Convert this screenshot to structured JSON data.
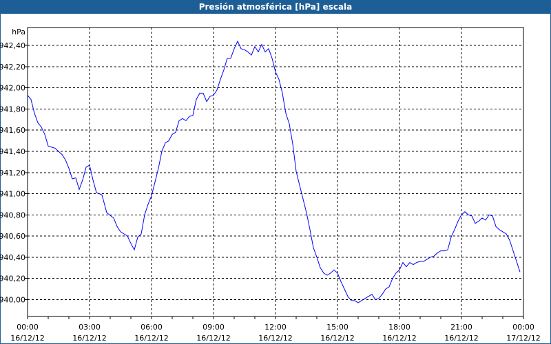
{
  "chart_data": {
    "type": "line",
    "title": "Presión atmosférica [hPa] escala",
    "ylabel": "hPa",
    "ylim": [
      939.84,
      942.57
    ],
    "yticks": [
      "942,40",
      "942,20",
      "942,00",
      "941,80",
      "941,60",
      "941,40",
      "941,20",
      "941,00",
      "940,80",
      "940,60",
      "940,40",
      "940,20",
      "940,00"
    ],
    "ytick_values": [
      942.4,
      942.2,
      942.0,
      941.8,
      941.6,
      941.4,
      941.2,
      941.0,
      940.8,
      940.6,
      940.4,
      940.2,
      940.0
    ],
    "xlim": [
      "16/12/12 00:00",
      "17/12/12 00:00"
    ],
    "xticks": [
      {
        "time": "00:00",
        "date": "16/12/12"
      },
      {
        "time": "03:00",
        "date": "16/12/12"
      },
      {
        "time": "06:00",
        "date": "16/12/12"
      },
      {
        "time": "09:00",
        "date": "16/12/12"
      },
      {
        "time": "12:00",
        "date": "16/12/12"
      },
      {
        "time": "15:00",
        "date": "16/12/12"
      },
      {
        "time": "18:00",
        "date": "16/12/12"
      },
      {
        "time": "21:00",
        "date": "16/12/12"
      },
      {
        "time": "00:00",
        "date": "17/12/12"
      }
    ],
    "grid": true,
    "line_color": "#0000ff",
    "series": [
      {
        "points": [
          [
            "00:00",
            941.93
          ],
          [
            "00:10",
            941.89
          ],
          [
            "00:20",
            941.76
          ],
          [
            "00:30",
            941.67
          ],
          [
            "00:40",
            941.63
          ],
          [
            "00:50",
            941.56
          ],
          [
            "01:00",
            941.45
          ],
          [
            "01:20",
            941.43
          ],
          [
            "01:40",
            941.37
          ],
          [
            "01:50",
            941.32
          ],
          [
            "02:00",
            941.24
          ],
          [
            "02:10",
            941.14
          ],
          [
            "02:20",
            941.15
          ],
          [
            "02:30",
            941.04
          ],
          [
            "02:40",
            941.13
          ],
          [
            "02:50",
            941.25
          ],
          [
            "03:00",
            941.27
          ],
          [
            "03:10",
            941.13
          ],
          [
            "03:20",
            941.01
          ],
          [
            "03:36",
            940.99
          ],
          [
            "03:50",
            940.82
          ],
          [
            "04:10",
            940.77
          ],
          [
            "04:20",
            940.69
          ],
          [
            "04:30",
            940.64
          ],
          [
            "04:50",
            940.6
          ],
          [
            "05:00",
            940.53
          ],
          [
            "05:10",
            940.47
          ],
          [
            "05:20",
            940.59
          ],
          [
            "05:30",
            940.62
          ],
          [
            "05:40",
            940.8
          ],
          [
            "05:50",
            940.9
          ],
          [
            "06:00",
            940.98
          ],
          [
            "06:10",
            941.11
          ],
          [
            "06:20",
            941.24
          ],
          [
            "06:30",
            941.4
          ],
          [
            "06:40",
            941.48
          ],
          [
            "06:50",
            941.5
          ],
          [
            "07:00",
            941.56
          ],
          [
            "07:10",
            941.58
          ],
          [
            "07:20",
            941.69
          ],
          [
            "07:30",
            941.71
          ],
          [
            "07:40",
            941.69
          ],
          [
            "07:50",
            941.73
          ],
          [
            "08:00",
            941.74
          ],
          [
            "08:10",
            941.89
          ],
          [
            "08:20",
            941.95
          ],
          [
            "08:30",
            941.95
          ],
          [
            "08:40",
            941.87
          ],
          [
            "08:50",
            941.92
          ],
          [
            "09:00",
            941.93
          ],
          [
            "09:10",
            941.98
          ],
          [
            "09:20",
            942.08
          ],
          [
            "09:30",
            942.17
          ],
          [
            "09:40",
            942.28
          ],
          [
            "09:50",
            942.28
          ],
          [
            "10:00",
            942.37
          ],
          [
            "10:10",
            942.44
          ],
          [
            "10:20",
            942.37
          ],
          [
            "10:30",
            942.36
          ],
          [
            "10:40",
            942.34
          ],
          [
            "10:50",
            942.31
          ],
          [
            "11:00",
            942.39
          ],
          [
            "11:10",
            942.34
          ],
          [
            "11:20",
            942.41
          ],
          [
            "11:30",
            942.34
          ],
          [
            "11:40",
            942.37
          ],
          [
            "11:50",
            942.28
          ],
          [
            "12:00",
            942.15
          ],
          [
            "12:10",
            942.08
          ],
          [
            "12:20",
            941.95
          ],
          [
            "12:30",
            941.76
          ],
          [
            "12:40",
            941.66
          ],
          [
            "12:50",
            941.47
          ],
          [
            "13:00",
            941.21
          ],
          [
            "13:10",
            941.08
          ],
          [
            "13:20",
            940.95
          ],
          [
            "13:30",
            940.82
          ],
          [
            "13:40",
            940.66
          ],
          [
            "13:50",
            940.49
          ],
          [
            "14:00",
            940.4
          ],
          [
            "14:10",
            940.3
          ],
          [
            "14:20",
            940.25
          ],
          [
            "14:30",
            940.23
          ],
          [
            "14:40",
            940.25
          ],
          [
            "14:50",
            940.28
          ],
          [
            "15:00",
            940.25
          ],
          [
            "15:10",
            940.17
          ],
          [
            "15:20",
            940.1
          ],
          [
            "15:30",
            940.03
          ],
          [
            "15:40",
            939.99
          ],
          [
            "15:50",
            939.99
          ],
          [
            "16:00",
            939.97
          ],
          [
            "16:10",
            939.99
          ],
          [
            "16:20",
            940.01
          ],
          [
            "16:30",
            940.03
          ],
          [
            "16:40",
            940.05
          ],
          [
            "16:50",
            940.0
          ],
          [
            "17:00",
            940.01
          ],
          [
            "17:10",
            940.05
          ],
          [
            "17:20",
            940.1
          ],
          [
            "17:30",
            940.12
          ],
          [
            "17:40",
            940.2
          ],
          [
            "17:50",
            940.25
          ],
          [
            "18:00",
            940.28
          ],
          [
            "18:10",
            940.35
          ],
          [
            "18:20",
            940.31
          ],
          [
            "18:30",
            940.35
          ],
          [
            "18:40",
            940.33
          ],
          [
            "18:50",
            940.35
          ],
          [
            "19:00",
            940.36
          ],
          [
            "19:10",
            940.36
          ],
          [
            "19:20",
            940.38
          ],
          [
            "19:30",
            940.4
          ],
          [
            "19:40",
            940.41
          ],
          [
            "19:50",
            940.44
          ],
          [
            "20:00",
            940.46
          ],
          [
            "20:10",
            940.46
          ],
          [
            "20:20",
            940.47
          ],
          [
            "20:30",
            940.59
          ],
          [
            "20:40",
            940.66
          ],
          [
            "20:50",
            940.74
          ],
          [
            "21:00",
            940.8
          ],
          [
            "21:10",
            940.83
          ],
          [
            "21:20",
            940.8
          ],
          [
            "21:30",
            940.79
          ],
          [
            "21:40",
            940.72
          ],
          [
            "21:50",
            940.74
          ],
          [
            "22:00",
            940.77
          ],
          [
            "22:10",
            940.75
          ],
          [
            "22:20",
            940.8
          ],
          [
            "22:30",
            940.79
          ],
          [
            "22:40",
            940.69
          ],
          [
            "22:50",
            940.66
          ],
          [
            "23:00",
            940.64
          ],
          [
            "23:10",
            940.62
          ],
          [
            "23:20",
            940.56
          ],
          [
            "23:30",
            940.46
          ],
          [
            "23:40",
            940.36
          ],
          [
            "23:50",
            940.26
          ]
        ]
      }
    ]
  },
  "colors": {
    "titlebar": "#1e5e96",
    "line": "#0000ff"
  }
}
